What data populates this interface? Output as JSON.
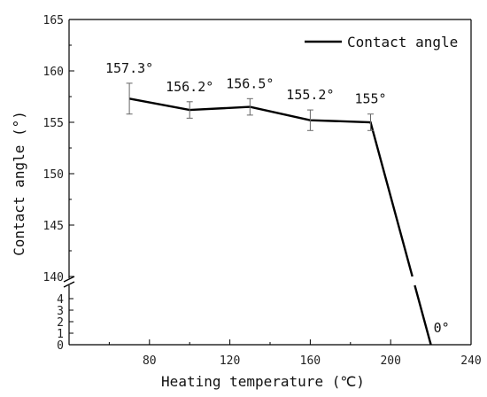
{
  "chart_data": {
    "type": "line",
    "title": "",
    "xlabel": "Heating temperature (℃)",
    "ylabel": "Contact angle (°)",
    "xlim": [
      40,
      240
    ],
    "x_ticks": [
      80,
      120,
      160,
      200,
      240
    ],
    "y_upper_range": [
      140,
      165
    ],
    "y_upper_ticks": [
      140,
      145,
      150,
      155,
      160,
      165
    ],
    "y_lower_range": [
      0,
      5
    ],
    "y_lower_ticks": [
      0,
      1,
      2,
      3,
      4
    ],
    "axis_break": true,
    "grid": false,
    "legend": {
      "position": "top-right",
      "entries": [
        "Contact angle"
      ]
    },
    "series": [
      {
        "name": "Contact angle",
        "color": "#000000",
        "x": [
          70,
          100,
          130,
          160,
          190,
          220
        ],
        "y": [
          157.3,
          156.2,
          156.5,
          155.2,
          155.0,
          0
        ],
        "error": [
          1.5,
          0.8,
          0.8,
          1.0,
          0.8,
          0
        ]
      }
    ],
    "data_labels": [
      "157.3°",
      "156.2°",
      "156.5°",
      "155.2°",
      "155°",
      "0°"
    ]
  }
}
